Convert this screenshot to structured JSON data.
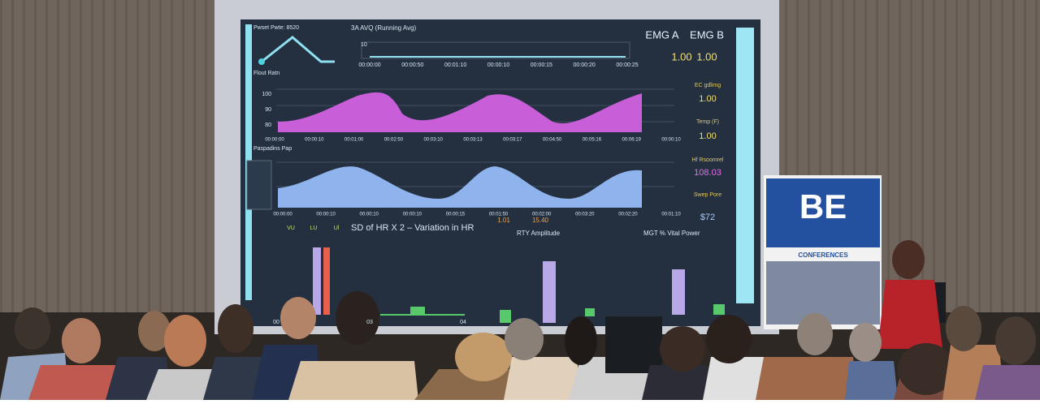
{
  "screen": {
    "top_left_label": "Pwset Pwte: 8520",
    "running_avg_title": "3A AVQ (Running Avg)",
    "running_avg_axis": "10",
    "running_avg_times": [
      "00:00:00",
      "00:00:50",
      "00:01:10",
      "00:00:10",
      "00:00:15",
      "00:00:20",
      "00:00:25"
    ],
    "heart_rate_label": "Flout Ratn",
    "heart_rate_axis": [
      "100",
      "90",
      "80"
    ],
    "heart_rate_times": [
      "00:00:00",
      "00:00:10",
      "00:01:00",
      "00:02:50",
      "00:03:10",
      "00:03:13",
      "00:03:17",
      "00:04:50",
      "00:05:16",
      "00:06:19",
      "00:00:10"
    ],
    "response_label": "Paspadins Pap",
    "response_times": [
      "00:00:00",
      "00:00:10",
      "00:00:10",
      "00:00:10",
      "00:00:15",
      "00:01:50",
      "00:02:00",
      "00:03:20",
      "00:02:20",
      "00:01:10"
    ],
    "response_markers": [
      "1.01",
      "15.40"
    ],
    "sd_legend": [
      "VU",
      "LU",
      "Ul"
    ],
    "sd_title": "SD of HR X 2 – Variation in HR",
    "rty_title": "RTY Amplitude",
    "mgt_title": "MGT % Vital Power",
    "bottom_axis": [
      "00",
      "03",
      "04"
    ],
    "stats": [
      {
        "label": "EMG A",
        "value": "1.00"
      },
      {
        "label": "EMG B",
        "value": "1.00"
      },
      {
        "label": "EC gdlimg",
        "value": "1.00"
      },
      {
        "label": "Temp (F)",
        "value": "1.00"
      },
      {
        "label": "Hf Rsoomrel",
        "value": "108.03"
      },
      {
        "label": "Swep Pore",
        "value": "$72"
      }
    ]
  },
  "banner": {
    "logo": "BE",
    "tagline": "CONFERENCES"
  }
}
